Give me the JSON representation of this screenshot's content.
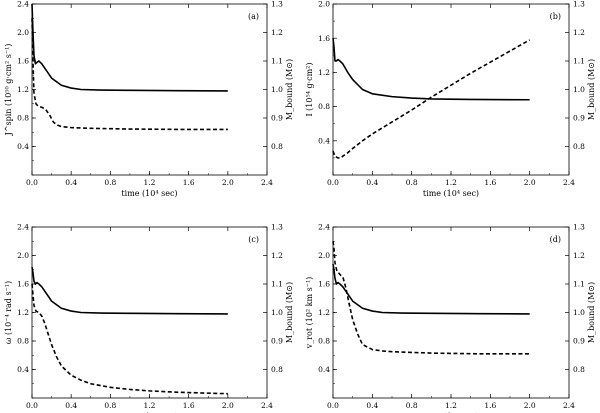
{
  "chart_data": [
    {
      "id": "a",
      "type": "line",
      "tag": "(a)",
      "xlabel": "time  (10⁴ sec)",
      "ylabel": "J^spin (10⁵⁰ g·cm² s⁻¹)",
      "y2label": "M_bound (M⊙)",
      "xlim": [
        0,
        2.4
      ],
      "ylim": [
        0,
        2.4
      ],
      "y2lim": [
        0.7,
        1.3
      ],
      "xticks": [
        "0.0",
        "0.4",
        "0.8",
        "1.2",
        "1.6",
        "2.0",
        "2.4"
      ],
      "yticks": [
        "0.4",
        "0.8",
        "1.2",
        "1.6",
        "2.0",
        "2.4"
      ],
      "y2ticks": [
        "0.8",
        "0.9",
        "1.0",
        "1.1",
        "1.2",
        "1.3"
      ],
      "series": [
        {
          "name": "M_bound",
          "axis": "right",
          "style": "solid",
          "x": [
            0.0,
            0.01,
            0.02,
            0.035,
            0.05,
            0.07,
            0.1,
            0.15,
            0.2,
            0.3,
            0.4,
            0.5,
            0.7,
            1.0,
            1.5,
            2.0
          ],
          "y": [
            1.3,
            1.2,
            1.12,
            1.09,
            1.095,
            1.1,
            1.09,
            1.065,
            1.04,
            1.015,
            1.005,
            1.0,
            0.998,
            0.997,
            0.996,
            0.995
          ]
        },
        {
          "name": "J_spin",
          "axis": "left",
          "style": "dashed",
          "x": [
            0.0,
            0.01,
            0.02,
            0.04,
            0.06,
            0.1,
            0.14,
            0.18,
            0.22,
            0.26,
            0.3,
            0.4,
            0.6,
            1.0,
            1.5,
            2.0
          ],
          "y": [
            2.2,
            1.6,
            1.15,
            1.0,
            0.97,
            0.95,
            0.92,
            0.84,
            0.74,
            0.7,
            0.68,
            0.665,
            0.655,
            0.645,
            0.64,
            0.64
          ]
        }
      ]
    },
    {
      "id": "b",
      "type": "line",
      "tag": "(b)",
      "xlabel": "time  (10⁴ sec)",
      "ylabel": "I (10⁵⁴ g·cm²)",
      "y2label": "M_bound (M⊙)",
      "xlim": [
        0,
        2.4
      ],
      "ylim": [
        0,
        2.0
      ],
      "y2lim": [
        0.7,
        1.3
      ],
      "xticks": [
        "0.0",
        "0.4",
        "0.8",
        "1.2",
        "1.6",
        "2.0",
        "2.4"
      ],
      "yticks": [
        "0.4",
        "0.8",
        "1.2",
        "1.6",
        "2.0"
      ],
      "y2ticks": [
        "0.8",
        "0.9",
        "1.0",
        "1.1",
        "1.2",
        "1.3"
      ],
      "series": [
        {
          "name": "M_bound",
          "axis": "right",
          "style": "solid",
          "x": [
            0.0,
            0.01,
            0.02,
            0.035,
            0.05,
            0.07,
            0.1,
            0.15,
            0.2,
            0.3,
            0.4,
            0.6,
            0.8,
            1.0,
            1.4,
            2.0
          ],
          "y": [
            1.18,
            1.15,
            1.1,
            1.1,
            1.105,
            1.1,
            1.09,
            1.06,
            1.035,
            1.0,
            0.985,
            0.975,
            0.97,
            0.967,
            0.965,
            0.964
          ]
        },
        {
          "name": "I",
          "axis": "left",
          "style": "dashed",
          "x": [
            0.0,
            0.02,
            0.05,
            0.08,
            0.1,
            0.15,
            0.2,
            0.3,
            0.4,
            0.6,
            0.8,
            1.0,
            1.2,
            1.4,
            1.6,
            1.8,
            2.0
          ],
          "y": [
            0.28,
            0.22,
            0.2,
            0.2,
            0.22,
            0.26,
            0.31,
            0.4,
            0.48,
            0.62,
            0.76,
            0.91,
            1.05,
            1.19,
            1.32,
            1.45,
            1.58
          ]
        }
      ]
    },
    {
      "id": "c",
      "type": "line",
      "tag": "(c)",
      "xlabel": "time  (10⁴ sec)",
      "ylabel": "ω (10⁻⁴ rad s⁻¹)",
      "y2label": "M_bound (M⊙)",
      "xlim": [
        0,
        2.4
      ],
      "ylim": [
        0,
        2.4
      ],
      "y2lim": [
        0.7,
        1.3
      ],
      "xticks": [
        "0.0",
        "0.4",
        "0.8",
        "1.2",
        "1.6",
        "2.0",
        "2.4"
      ],
      "yticks": [
        "0.4",
        "0.8",
        "1.2",
        "1.6",
        "2.0",
        "2.4"
      ],
      "y2ticks": [
        "0.8",
        "0.9",
        "1.0",
        "1.1",
        "1.2",
        "1.3"
      ],
      "series": [
        {
          "name": "M_bound",
          "axis": "right",
          "style": "solid",
          "x": [
            0.0,
            0.01,
            0.02,
            0.035,
            0.05,
            0.07,
            0.1,
            0.15,
            0.2,
            0.3,
            0.4,
            0.5,
            0.7,
            1.0,
            1.5,
            2.0
          ],
          "y": [
            1.16,
            1.14,
            1.11,
            1.1,
            1.105,
            1.1,
            1.09,
            1.065,
            1.04,
            1.015,
            1.005,
            1.0,
            0.998,
            0.997,
            0.996,
            0.995
          ]
        },
        {
          "name": "ω",
          "axis": "left",
          "style": "dashed",
          "x": [
            0.0,
            0.01,
            0.02,
            0.04,
            0.07,
            0.1,
            0.13,
            0.16,
            0.2,
            0.25,
            0.3,
            0.4,
            0.5,
            0.6,
            0.8,
            1.0,
            1.2,
            1.5,
            2.0
          ],
          "y": [
            1.6,
            1.45,
            1.3,
            1.22,
            1.2,
            1.15,
            1.05,
            0.92,
            0.75,
            0.58,
            0.45,
            0.32,
            0.25,
            0.2,
            0.15,
            0.12,
            0.1,
            0.08,
            0.06
          ]
        }
      ]
    },
    {
      "id": "d",
      "type": "line",
      "tag": "(d)",
      "xlabel": "time  (10⁴ sec)",
      "ylabel": "v_rot (10² km s⁻¹)",
      "y2label": "M_bound (M⊙)",
      "xlim": [
        0,
        2.4
      ],
      "ylim": [
        0,
        2.4
      ],
      "y2lim": [
        0.7,
        1.3
      ],
      "xticks": [
        "0.0",
        "0.4",
        "0.8",
        "1.2",
        "1.6",
        "2.0",
        "2.4"
      ],
      "yticks": [
        "0.4",
        "0.8",
        "1.2",
        "1.6",
        "2.0",
        "2.4"
      ],
      "y2ticks": [
        "0.8",
        "0.9",
        "1.0",
        "1.1",
        "1.2",
        "1.3"
      ],
      "series": [
        {
          "name": "M_bound",
          "axis": "right",
          "style": "solid",
          "x": [
            0.0,
            0.01,
            0.02,
            0.035,
            0.05,
            0.07,
            0.1,
            0.15,
            0.2,
            0.3,
            0.4,
            0.5,
            0.7,
            1.0,
            1.5,
            2.0
          ],
          "y": [
            1.17,
            1.15,
            1.12,
            1.1,
            1.105,
            1.1,
            1.09,
            1.065,
            1.04,
            1.015,
            1.005,
            1.0,
            0.998,
            0.997,
            0.996,
            0.995
          ]
        },
        {
          "name": "v_rot",
          "axis": "left",
          "style": "dashed",
          "x": [
            0.0,
            0.01,
            0.02,
            0.04,
            0.06,
            0.08,
            0.1,
            0.13,
            0.16,
            0.2,
            0.25,
            0.3,
            0.4,
            0.5,
            0.6,
            0.8,
            1.0,
            1.5,
            2.0
          ],
          "y": [
            2.2,
            2.1,
            1.9,
            1.78,
            1.75,
            1.72,
            1.7,
            1.55,
            1.35,
            1.1,
            0.9,
            0.75,
            0.68,
            0.66,
            0.65,
            0.64,
            0.63,
            0.62,
            0.62
          ]
        }
      ]
    }
  ]
}
